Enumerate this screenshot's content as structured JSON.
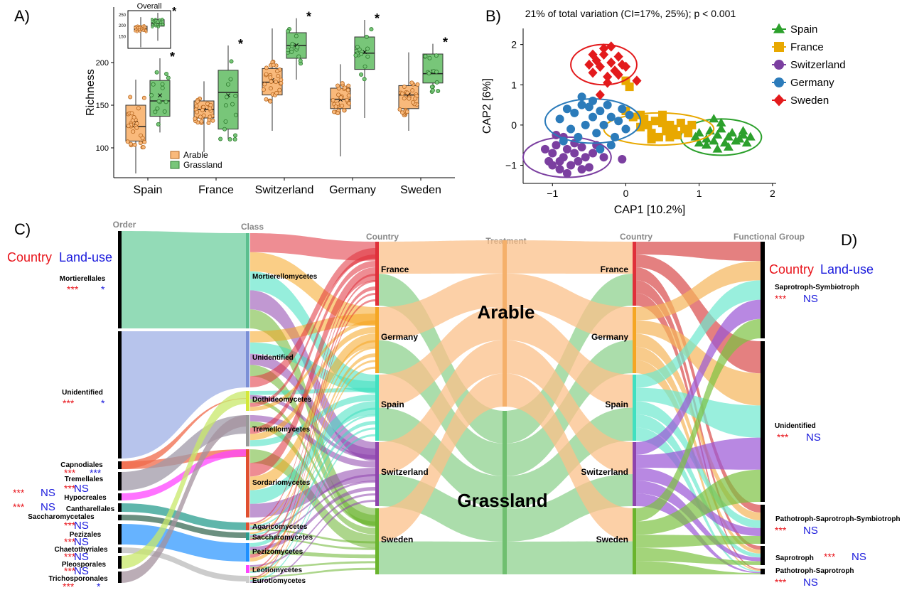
{
  "panel_labels": {
    "A": "A)",
    "B": "B)",
    "C": "C)",
    "D": "D)"
  },
  "chart_data": [
    {
      "panel": "A",
      "type": "box",
      "ylabel": "Richness",
      "yticks": [
        100,
        150,
        200
      ],
      "ylim": [
        65,
        265
      ],
      "categories": [
        "Spain",
        "France",
        "Switzerland",
        "Germany",
        "Sweden"
      ],
      "legend": [
        "Arable",
        "Grassland"
      ],
      "colors": {
        "Arable": "#f9b97b",
        "Grassland": "#78c679"
      },
      "series": [
        {
          "name": "Arable",
          "values": [
            {
              "min": 70,
              "q1": 108,
              "median": 125,
              "q3": 150,
              "max": 180,
              "mean": 130
            },
            {
              "min": 95,
              "q1": 135,
              "median": 145,
              "q3": 155,
              "max": 178,
              "mean": 145
            },
            {
              "min": 120,
              "q1": 162,
              "median": 177,
              "q3": 193,
              "max": 240,
              "mean": 180
            },
            {
              "min": 90,
              "q1": 146,
              "median": 157,
              "q3": 170,
              "max": 198,
              "mean": 157
            },
            {
              "min": 120,
              "q1": 146,
              "median": 162,
              "q3": 173,
              "max": 212,
              "mean": 163
            }
          ]
        },
        {
          "name": "Grassland",
          "values": [
            {
              "min": 118,
              "q1": 137,
              "median": 155,
              "q3": 179,
              "max": 205,
              "mean": 162
            },
            {
              "min": 110,
              "q1": 122,
              "median": 165,
              "q3": 191,
              "max": 220,
              "mean": 162
            },
            {
              "min": 180,
              "q1": 205,
              "median": 220,
              "q3": 235,
              "max": 252,
              "mean": 221
            },
            {
              "min": 135,
              "q1": 192,
              "median": 211,
              "q3": 230,
              "max": 250,
              "mean": 213
            },
            {
              "min": 165,
              "q1": 176,
              "median": 187,
              "q3": 210,
              "max": 222,
              "mean": 190
            }
          ]
        }
      ],
      "significance": [
        "*",
        "*",
        "*",
        "*",
        "*"
      ],
      "inset": {
        "title": "Overall",
        "yticks": [
          150,
          200,
          250
        ],
        "ylim": [
          95,
          270
        ],
        "arable": {
          "min": 100,
          "q1": 175,
          "median": 185,
          "q3": 198,
          "max": 240
        },
        "grassland": {
          "min": 130,
          "q1": 198,
          "median": 210,
          "q3": 228,
          "max": 260
        },
        "significance": "*"
      }
    },
    {
      "panel": "B",
      "type": "scatter",
      "title": "21% of total variation (CI=17%, 25%); p < 0.001",
      "xlabel": "CAP1   [10.2%]",
      "ylabel": "CAP2   [6%]",
      "xlim": [
        -1.4,
        2.05
      ],
      "ylim": [
        -1.45,
        2.4
      ],
      "xticks": [
        -1,
        0,
        1,
        2
      ],
      "yticks": [
        -1,
        0,
        1,
        2
      ],
      "series": [
        {
          "name": "Spain",
          "marker": "triangle",
          "color": "#2ca02c",
          "center": [
            1.3,
            -0.3
          ],
          "rx": 0.55,
          "ry": 0.45,
          "points": [
            [
              0.95,
              -0.3
            ],
            [
              1.0,
              -0.2
            ],
            [
              1.1,
              -0.35
            ],
            [
              1.15,
              -0.15
            ],
            [
              1.2,
              -0.4
            ],
            [
              1.25,
              -0.25
            ],
            [
              1.3,
              -0.1
            ],
            [
              1.35,
              -0.45
            ],
            [
              1.4,
              -0.3
            ],
            [
              1.45,
              -0.2
            ],
            [
              1.5,
              -0.4
            ],
            [
              1.55,
              -0.35
            ],
            [
              1.6,
              -0.25
            ],
            [
              1.65,
              -0.45
            ],
            [
              1.2,
              0.15
            ],
            [
              1.3,
              0.05
            ],
            [
              1.1,
              -0.5
            ],
            [
              1.4,
              -0.55
            ],
            [
              1.6,
              -0.15
            ],
            [
              1.7,
              -0.3
            ],
            [
              1.0,
              -0.45
            ],
            [
              1.25,
              -0.6
            ]
          ]
        },
        {
          "name": "France",
          "marker": "square",
          "color": "#e8a800",
          "center": [
            0.45,
            -0.1
          ],
          "rx": 0.75,
          "ry": 0.4,
          "points": [
            [
              0.0,
              0.35
            ],
            [
              0.1,
              0.2
            ],
            [
              0.2,
              -0.05
            ],
            [
              0.25,
              0.15
            ],
            [
              0.3,
              0.0
            ],
            [
              0.35,
              -0.2
            ],
            [
              0.4,
              0.1
            ],
            [
              0.45,
              -0.3
            ],
            [
              0.5,
              0.05
            ],
            [
              0.55,
              -0.15
            ],
            [
              0.6,
              0.0
            ],
            [
              0.65,
              -0.1
            ],
            [
              0.7,
              -0.25
            ],
            [
              0.75,
              0.05
            ],
            [
              0.8,
              -0.1
            ],
            [
              0.85,
              -0.2
            ],
            [
              0.9,
              0.0
            ],
            [
              0.5,
              0.25
            ],
            [
              0.35,
              -0.35
            ],
            [
              0.2,
              0.25
            ],
            [
              0.6,
              -0.3
            ],
            [
              0.0,
              1.1
            ],
            [
              0.05,
              0.95
            ]
          ]
        },
        {
          "name": "Switzerland",
          "marker": "circle",
          "color": "#7b3fa0",
          "center": [
            -0.8,
            -0.8
          ],
          "rx": 0.6,
          "ry": 0.5,
          "points": [
            [
              -1.0,
              -0.7
            ],
            [
              -1.05,
              -0.9
            ],
            [
              -0.95,
              -0.5
            ],
            [
              -0.9,
              -1.1
            ],
            [
              -0.85,
              -0.8
            ],
            [
              -0.8,
              -0.6
            ],
            [
              -0.75,
              -1.0
            ],
            [
              -0.7,
              -0.7
            ],
            [
              -0.65,
              -0.9
            ],
            [
              -0.6,
              -0.55
            ],
            [
              -0.55,
              -0.8
            ],
            [
              -0.5,
              -1.05
            ],
            [
              -0.45,
              -0.7
            ],
            [
              -0.9,
              -0.9
            ],
            [
              -1.0,
              -1.0
            ],
            [
              -0.8,
              -1.2
            ],
            [
              -0.7,
              -0.45
            ],
            [
              -0.6,
              -1.1
            ],
            [
              -0.4,
              -0.5
            ],
            [
              -1.1,
              -0.6
            ],
            [
              -0.85,
              -0.3
            ],
            [
              -0.3,
              -0.8
            ],
            [
              -0.05,
              -0.85
            ],
            [
              -0.95,
              -0.25
            ]
          ]
        },
        {
          "name": "Germany",
          "marker": "circle",
          "color": "#2b7bba",
          "center": [
            -0.45,
            0.1
          ],
          "rx": 0.65,
          "ry": 0.55,
          "points": [
            [
              -0.9,
              0.15
            ],
            [
              -0.8,
              0.4
            ],
            [
              -0.75,
              -0.1
            ],
            [
              -0.7,
              0.3
            ],
            [
              -0.6,
              0.5
            ],
            [
              -0.55,
              0.0
            ],
            [
              -0.5,
              0.45
            ],
            [
              -0.45,
              0.2
            ],
            [
              -0.4,
              -0.2
            ],
            [
              -0.35,
              0.35
            ],
            [
              -0.3,
              0.0
            ],
            [
              -0.25,
              0.5
            ],
            [
              -0.2,
              0.2
            ],
            [
              -0.15,
              -0.3
            ],
            [
              -0.1,
              0.1
            ],
            [
              -0.05,
              0.4
            ],
            [
              0.0,
              -0.1
            ],
            [
              -0.65,
              -0.3
            ],
            [
              -0.85,
              -0.4
            ],
            [
              -0.45,
              0.6
            ],
            [
              -0.2,
              -0.5
            ],
            [
              0.05,
              0.25
            ],
            [
              -0.6,
              0.7
            ],
            [
              -0.35,
              -0.6
            ]
          ]
        },
        {
          "name": "Sweden",
          "marker": "diamond",
          "color": "#e31a1c",
          "center": [
            -0.3,
            1.5
          ],
          "rx": 0.45,
          "ry": 0.5,
          "points": [
            [
              -0.45,
              1.3
            ],
            [
              -0.4,
              1.6
            ],
            [
              -0.35,
              1.45
            ],
            [
              -0.3,
              1.75
            ],
            [
              -0.25,
              1.2
            ],
            [
              -0.2,
              1.55
            ],
            [
              -0.15,
              1.35
            ],
            [
              -0.1,
              1.7
            ],
            [
              -0.05,
              1.5
            ],
            [
              -0.5,
              1.5
            ],
            [
              -0.3,
              1.9
            ],
            [
              -0.2,
              1.95
            ],
            [
              -0.1,
              1.25
            ],
            [
              0.0,
              1.45
            ],
            [
              -0.45,
              1.75
            ],
            [
              -0.25,
              1.05
            ],
            [
              0.15,
              1.1
            ],
            [
              -0.35,
              0.75
            ]
          ]
        }
      ]
    },
    {
      "panel": "C-D",
      "type": "sankey",
      "axis_titles": [
        "Order",
        "Class",
        "Country",
        "Treatment",
        "Country",
        "Functional Group"
      ],
      "order_nodes": [
        {
          "name": "Mortierellales",
          "country_sig": "***",
          "landuse_sig": "*"
        },
        {
          "name": "Unidentified",
          "country_sig": "***",
          "landuse_sig": "*"
        },
        {
          "name": "Capnodiales",
          "country_sig": "***",
          "landuse_sig": "***"
        },
        {
          "name": "Tremellales",
          "country_sig": "***",
          "landuse_sig": "NS"
        },
        {
          "name": "Hypocreales",
          "country_sig": "***",
          "landuse_sig": "NS"
        },
        {
          "name": "Cantharellales",
          "country_sig": "***",
          "landuse_sig": "NS"
        },
        {
          "name": "Saccharomycetales",
          "country_sig": "***",
          "landuse_sig": "NS"
        },
        {
          "name": "Pezizales",
          "country_sig": "***",
          "landuse_sig": "NS"
        },
        {
          "name": "Chaetothyriales",
          "country_sig": "***",
          "landuse_sig": "NS"
        },
        {
          "name": "Pleosporales",
          "country_sig": "***",
          "landuse_sig": "NS"
        },
        {
          "name": "Trichosporonales",
          "country_sig": "***",
          "landuse_sig": "*"
        }
      ],
      "class_nodes": [
        "Mortierellomycetes",
        "Unidentified",
        "Dothideomycetes",
        "Tremellomycetes",
        "Sordariomycetes",
        "Agaricomycetes",
        "Saccharomycetes",
        "Pezizomycetes",
        "Leotiomycetes",
        "Eurotiomycetes"
      ],
      "country_nodes": [
        "France",
        "Germany",
        "Spain",
        "Switzerland",
        "Sweden"
      ],
      "treatment_nodes": [
        "Arable",
        "Grassland"
      ],
      "functional_nodes": [
        {
          "name": "Saprotroph-Symbiotroph",
          "country_sig": "***",
          "landuse_sig": "NS"
        },
        {
          "name": "Unidentified",
          "country_sig": "***",
          "landuse_sig": "NS"
        },
        {
          "name": "Pathotroph-Saprotroph-Symbiotroph",
          "country_sig": "***",
          "landuse_sig": "NS"
        },
        {
          "name": "Saprotroph",
          "country_sig": "***",
          "landuse_sig": "NS"
        },
        {
          "name": "Pathotroph-Saprotroph",
          "country_sig": "***",
          "landuse_sig": "NS"
        }
      ],
      "legend_left": {
        "country": "Country",
        "landuse": "Land-use"
      },
      "legend_right": {
        "country": "Country",
        "landuse": "Land-use"
      }
    }
  ]
}
